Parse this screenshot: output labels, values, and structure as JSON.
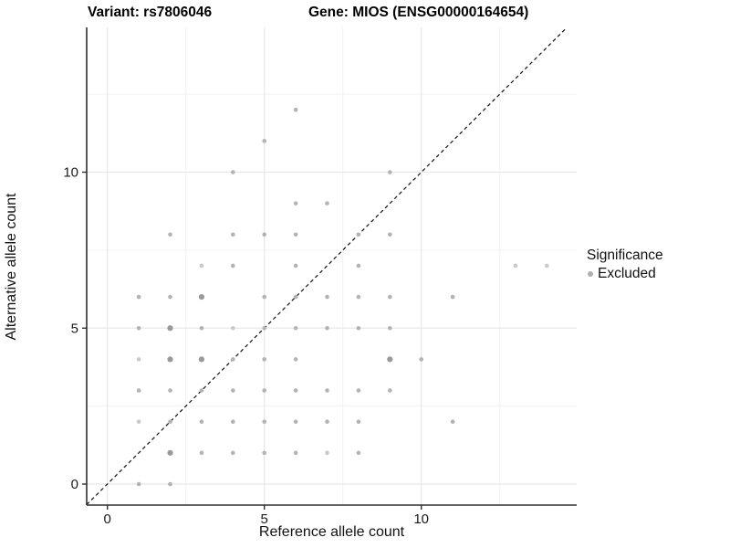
{
  "title": {
    "variant": "Variant: rs7806046",
    "gene": "Gene: MIOS (ENSG00000164654)"
  },
  "axes": {
    "x": {
      "label": "Reference allele count"
    },
    "y": {
      "label": "Alternative allele count"
    }
  },
  "legend": {
    "title": "Significance",
    "items": [
      {
        "label": "Excluded",
        "color": "#b0b0b0"
      }
    ]
  },
  "colors": {
    "point_dark": "#9a9a9a",
    "point_mid": "#b3b3b3",
    "point_light": "#c9c9c9",
    "grid_major": "#e8e8e8",
    "grid_minor": "#f2f2f2",
    "axis": "#303030",
    "tick_label": "#1a1a1a",
    "identity_line": "#111111",
    "background": "#ffffff"
  },
  "chart_data": {
    "type": "scatter",
    "title": "Variant: rs7806046    Gene: MIOS (ENSG00000164654)",
    "xlabel": "Reference allele count",
    "ylabel": "Alternative allele count",
    "xlim": [
      -0.66,
      14.95
    ],
    "ylim": [
      -0.67,
      14.64
    ],
    "x_ticks": [
      0,
      5,
      10
    ],
    "y_ticks": [
      0,
      5,
      10
    ],
    "x_minor_gridlines": [
      2.5,
      7.5,
      12.5
    ],
    "y_minor_gridlines": [
      2.5,
      7.5,
      12.5
    ],
    "grid": true,
    "identity_line": {
      "shown": true,
      "style": "dashed",
      "equation": "y = x"
    },
    "legend_position": "right",
    "series": [
      {
        "name": "Excluded",
        "point_format": [
          "x",
          "y",
          "shade",
          "size"
        ],
        "points": [
          [
            1,
            0,
            "mid",
            1
          ],
          [
            2,
            0,
            "mid",
            1
          ],
          [
            2,
            1,
            "dark",
            2
          ],
          [
            3,
            1,
            "mid",
            1
          ],
          [
            4,
            1,
            "mid",
            1
          ],
          [
            5,
            1,
            "mid",
            1
          ],
          [
            6,
            1,
            "mid",
            1
          ],
          [
            7,
            1,
            "light",
            1
          ],
          [
            8,
            1,
            "mid",
            1
          ],
          [
            1,
            2,
            "light",
            1
          ],
          [
            2,
            2,
            "mid",
            1
          ],
          [
            3,
            2,
            "mid",
            1
          ],
          [
            4,
            2,
            "mid",
            1
          ],
          [
            5,
            2,
            "mid",
            1
          ],
          [
            6,
            2,
            "mid",
            1
          ],
          [
            7,
            2,
            "mid",
            1
          ],
          [
            8,
            2,
            "mid",
            1
          ],
          [
            11,
            2,
            "mid",
            1
          ],
          [
            1,
            3,
            "mid",
            1
          ],
          [
            2,
            3,
            "mid",
            1
          ],
          [
            3,
            3,
            "mid",
            1
          ],
          [
            4,
            3,
            "mid",
            1
          ],
          [
            5,
            3,
            "mid",
            1
          ],
          [
            6,
            3,
            "mid",
            1
          ],
          [
            7,
            3,
            "mid",
            1
          ],
          [
            8,
            3,
            "mid",
            1
          ],
          [
            9,
            3,
            "mid",
            1
          ],
          [
            1,
            4,
            "light",
            1
          ],
          [
            2,
            4,
            "dark",
            2
          ],
          [
            3,
            4,
            "dark",
            2
          ],
          [
            4,
            4,
            "mid",
            1
          ],
          [
            5,
            4,
            "mid",
            1
          ],
          [
            6,
            4,
            "mid",
            1
          ],
          [
            9,
            4,
            "dark",
            2
          ],
          [
            10,
            4,
            "mid",
            1
          ],
          [
            1,
            5,
            "mid",
            1
          ],
          [
            2,
            5,
            "dark",
            2
          ],
          [
            3,
            5,
            "mid",
            1
          ],
          [
            4,
            5,
            "light",
            1
          ],
          [
            5,
            5,
            "mid",
            1
          ],
          [
            6,
            5,
            "mid",
            1
          ],
          [
            7,
            5,
            "mid",
            1
          ],
          [
            8,
            5,
            "mid",
            1
          ],
          [
            9,
            5,
            "mid",
            1
          ],
          [
            1,
            6,
            "mid",
            1
          ],
          [
            2,
            6,
            "mid",
            1
          ],
          [
            3,
            6,
            "dark",
            2
          ],
          [
            5,
            6,
            "mid",
            1
          ],
          [
            6,
            6,
            "mid",
            1
          ],
          [
            7,
            6,
            "mid",
            1
          ],
          [
            8,
            6,
            "mid",
            1
          ],
          [
            9,
            6,
            "mid",
            1
          ],
          [
            11,
            6,
            "mid",
            1
          ],
          [
            3,
            7,
            "light",
            1
          ],
          [
            4,
            7,
            "mid",
            1
          ],
          [
            6,
            7,
            "mid",
            1
          ],
          [
            8,
            7,
            "mid",
            1
          ],
          [
            13,
            7,
            "light",
            1
          ],
          [
            14,
            7,
            "light",
            1
          ],
          [
            2,
            8,
            "mid",
            1
          ],
          [
            4,
            8,
            "mid",
            1
          ],
          [
            5,
            8,
            "mid",
            1
          ],
          [
            6,
            8,
            "mid",
            1
          ],
          [
            8,
            8,
            "mid",
            1
          ],
          [
            9,
            8,
            "mid",
            1
          ],
          [
            6,
            9,
            "mid",
            1
          ],
          [
            7,
            9,
            "mid",
            1
          ],
          [
            4,
            10,
            "mid",
            1
          ],
          [
            9,
            10,
            "mid",
            1
          ],
          [
            5,
            11,
            "mid",
            1
          ],
          [
            6,
            12,
            "mid",
            1
          ]
        ]
      }
    ]
  }
}
